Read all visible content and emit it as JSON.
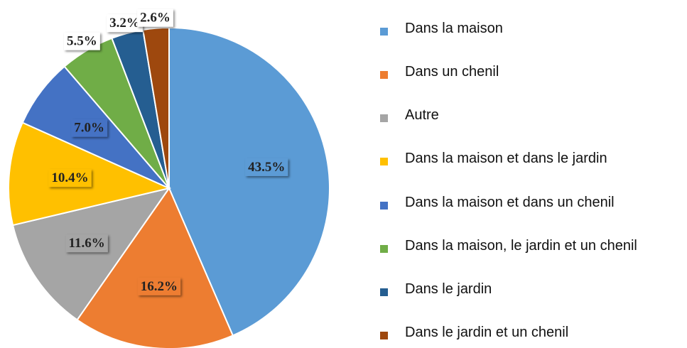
{
  "chart_data": {
    "type": "pie",
    "categories": [
      "Dans la maison",
      "Dans un chenil",
      "Autre",
      "Dans la maison et dans le jardin",
      "Dans la maison et dans un chenil",
      "Dans la maison, le jardin et un chenil",
      "Dans le jardin",
      "Dans le jardin et un chenil"
    ],
    "values": [
      43.5,
      16.2,
      11.6,
      10.4,
      7.0,
      5.5,
      3.2,
      2.6
    ],
    "value_labels": [
      "43.5%",
      "16.2%",
      "11.6%",
      "10.4%",
      "7.0%",
      "5.5%",
      "3.2%",
      "2.6%"
    ],
    "colors": [
      "#5b9bd5",
      "#ed7d31",
      "#a5a5a5",
      "#ffc000",
      "#4472c4",
      "#70ad47",
      "#255e91",
      "#9e480e"
    ],
    "legend": "right"
  }
}
